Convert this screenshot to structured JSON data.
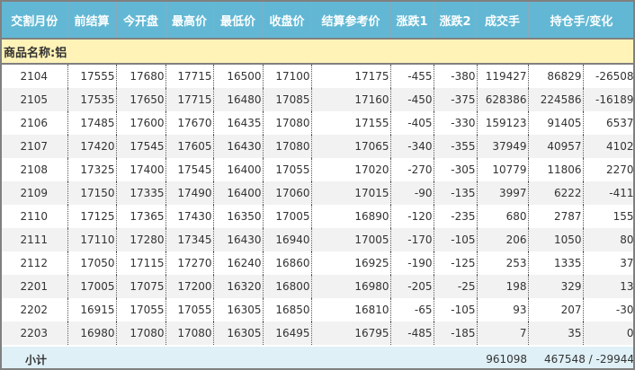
{
  "headers": [
    "交割月份",
    "前结算",
    "今开盘",
    "最高价",
    "最低价",
    "收盘价",
    "结算参考价",
    "涨跌1",
    "涨跌2",
    "成交手",
    "持仓手/变化"
  ],
  "category": "商品名称:铝",
  "rows": [
    [
      "2104",
      "17555",
      "17680",
      "17715",
      "16500",
      "17100",
      "17175",
      "-455",
      "-380",
      "119427",
      "86829",
      "-26508"
    ],
    [
      "2105",
      "17535",
      "17650",
      "17715",
      "16480",
      "17085",
      "17160",
      "-450",
      "-375",
      "628386",
      "224586",
      "-16189"
    ],
    [
      "2106",
      "17485",
      "17600",
      "17670",
      "16435",
      "17080",
      "17155",
      "-405",
      "-330",
      "159123",
      "91405",
      "6537"
    ],
    [
      "2107",
      "17420",
      "17545",
      "17605",
      "16430",
      "17080",
      "17065",
      "-340",
      "-355",
      "37949",
      "40957",
      "4102"
    ],
    [
      "2108",
      "17325",
      "17400",
      "17545",
      "16400",
      "17055",
      "17020",
      "-270",
      "-305",
      "10779",
      "11806",
      "2270"
    ],
    [
      "2109",
      "17150",
      "17335",
      "17490",
      "16400",
      "17060",
      "17015",
      "-90",
      "-135",
      "3997",
      "6222",
      "-411"
    ],
    [
      "2110",
      "17125",
      "17365",
      "17430",
      "16350",
      "17005",
      "16890",
      "-120",
      "-235",
      "680",
      "2787",
      "155"
    ],
    [
      "2111",
      "17110",
      "17280",
      "17345",
      "16430",
      "16940",
      "17005",
      "-170",
      "-105",
      "206",
      "1050",
      "80"
    ],
    [
      "2112",
      "17050",
      "17115",
      "17270",
      "16240",
      "16860",
      "16925",
      "-190",
      "-125",
      "253",
      "1335",
      "37"
    ],
    [
      "2201",
      "17005",
      "17075",
      "17200",
      "16320",
      "16800",
      "16980",
      "-205",
      "-25",
      "198",
      "329",
      "13"
    ],
    [
      "2202",
      "16915",
      "17055",
      "17055",
      "16305",
      "16850",
      "16810",
      "-65",
      "-105",
      "93",
      "207",
      "-30"
    ],
    [
      "2203",
      "16980",
      "17080",
      "17080",
      "16305",
      "16495",
      "16795",
      "-485",
      "-185",
      "7",
      "35",
      "0"
    ]
  ],
  "subtotal": {
    "label": "小计",
    "volume": "961098",
    "open_interest": "467548 / -29944"
  },
  "colors": {
    "header": "#62b8d4",
    "category": "#fff3b8",
    "subtotal": "#dff0f7"
  }
}
